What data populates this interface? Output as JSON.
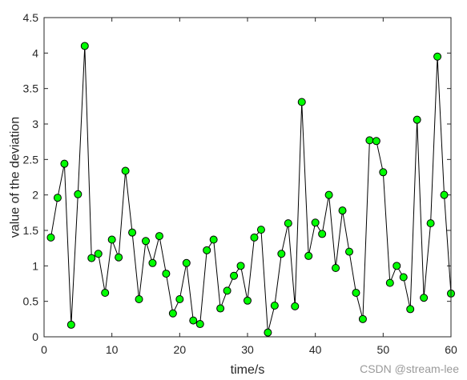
{
  "chart_data": {
    "type": "line",
    "xlabel": "time/s",
    "ylabel": "value of the deviation",
    "xlim": [
      0,
      60
    ],
    "ylim": [
      0,
      4.5
    ],
    "xticks": [
      0,
      10,
      20,
      30,
      40,
      50,
      60
    ],
    "xtick_labels": [
      "0",
      "10",
      "20",
      "30",
      "40",
      "50",
      "60"
    ],
    "yticks": [
      0,
      0.5,
      1,
      1.5,
      2,
      2.5,
      3,
      3.5,
      4,
      4.5
    ],
    "ytick_labels": [
      "0",
      "0.5",
      "1",
      "1.5",
      "2",
      "2.5",
      "3",
      "3.5",
      "4",
      "4.5"
    ],
    "grid": false,
    "line_color": "#000000",
    "marker_face_color": "#00ff00",
    "marker_edge_color": "#000000",
    "series": [
      {
        "x": [
          1,
          2,
          3,
          4,
          5,
          6,
          7,
          8,
          9,
          10,
          11,
          12,
          13,
          14,
          15,
          16,
          17,
          18,
          19,
          20,
          21,
          22,
          23,
          24,
          25,
          26,
          27,
          28,
          29,
          30,
          31,
          32,
          33,
          34,
          35,
          36,
          37,
          38,
          39,
          40,
          41,
          42,
          43,
          44,
          45,
          46,
          47,
          48,
          49,
          50,
          51,
          52,
          53,
          54,
          55,
          56,
          57,
          58,
          59,
          60
        ],
        "y": [
          1.4,
          1.96,
          2.44,
          0.17,
          2.01,
          4.1,
          1.11,
          1.17,
          0.62,
          1.37,
          1.12,
          2.34,
          1.47,
          0.53,
          1.35,
          1.04,
          1.42,
          0.89,
          0.33,
          0.53,
          1.04,
          0.23,
          0.18,
          1.22,
          1.37,
          0.4,
          0.65,
          0.86,
          1.0,
          0.51,
          1.4,
          1.51,
          0.06,
          0.44,
          1.17,
          1.6,
          0.43,
          3.31,
          1.14,
          1.61,
          1.45,
          2.0,
          0.97,
          1.78,
          1.2,
          0.62,
          0.25,
          2.77,
          2.76,
          2.32,
          0.76,
          1.0,
          0.84,
          0.39,
          3.06,
          0.55,
          1.6,
          3.95,
          2.0,
          0.61
        ]
      }
    ]
  },
  "watermark": "CSDN @stream-lee"
}
